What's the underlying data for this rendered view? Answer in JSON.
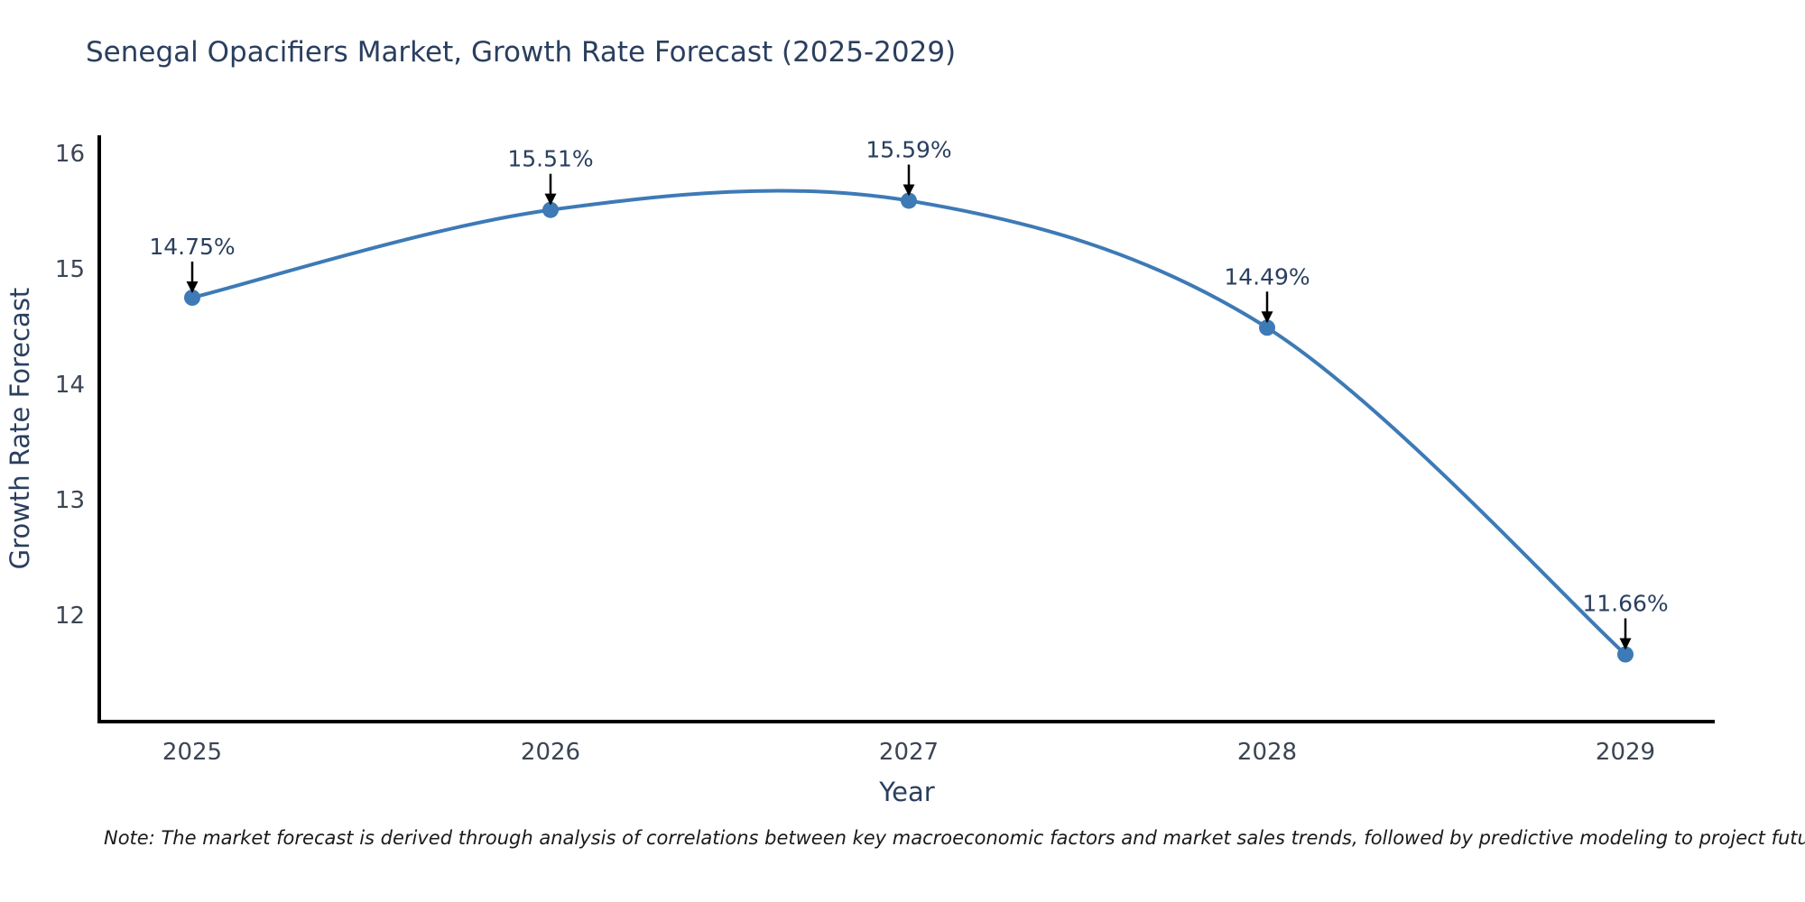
{
  "title": "Senegal Opacifiers Market, Growth Rate Forecast (2025-2029)",
  "note": "Note: The market forecast is derived through analysis of correlations between key macroeconomic factors and market sales trends, followed by predictive modeling to project future sales",
  "chart_data": {
    "type": "line",
    "line_shape": "spline",
    "title": "Senegal Opacifiers Market, Growth Rate Forecast (2025-2029)",
    "xlabel": "Year",
    "ylabel": "Growth Rate Forecast",
    "x": [
      2025,
      2026,
      2027,
      2028,
      2029
    ],
    "xticks": [
      "2025",
      "2026",
      "2027",
      "2028",
      "2029"
    ],
    "yticks": [
      12,
      13,
      14,
      15,
      16
    ],
    "ylim": [
      11.1,
      16.15
    ],
    "grid": false,
    "legend": "none",
    "series": [
      {
        "name": "Growth Rate Forecast",
        "values": [
          14.75,
          15.51,
          15.59,
          14.49,
          11.66
        ]
      }
    ],
    "point_labels": [
      "14.75%",
      "15.51%",
      "15.59%",
      "14.49%",
      "11.66%"
    ],
    "colors": {
      "line": "#3d7ab6",
      "marker": "#3d7ab6",
      "axis_line": "#000000",
      "tick_text": "#3b4554",
      "axis_title_text": "#2a3f5f",
      "title_text": "#2a3f5f",
      "annotation_text": "#2a3f5f",
      "annotation_arrow": "#000000",
      "background": "#ffffff"
    }
  }
}
